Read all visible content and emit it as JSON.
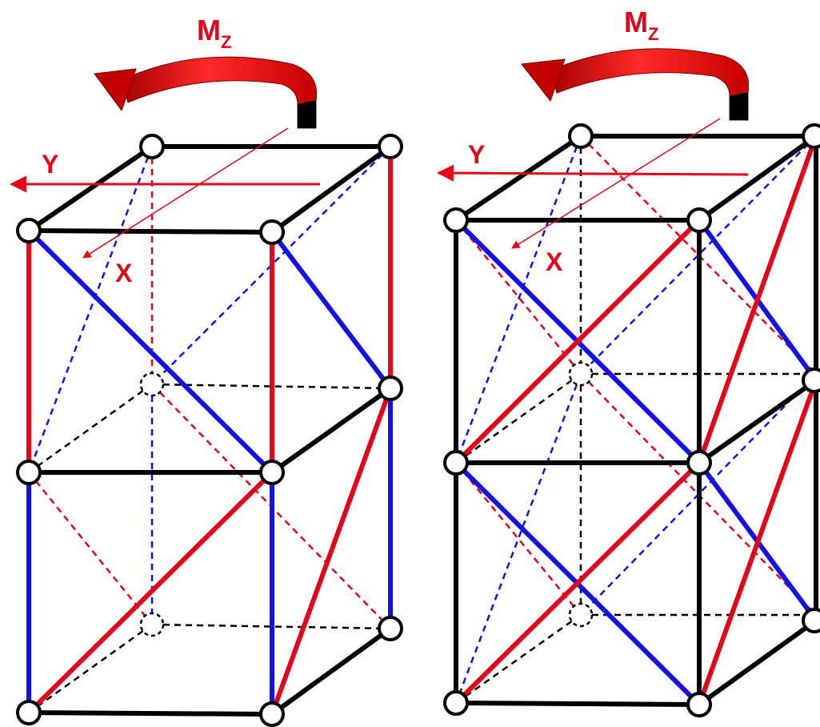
{
  "colors": {
    "frame": "#000000",
    "tension": "#e3061b",
    "compression": "#1410e6",
    "node_fill": "#ffffff"
  },
  "left_frame": {
    "moment_label": "M",
    "moment_subscript": "Z",
    "axis_y_label": "Y",
    "axis_x_label": "X"
  },
  "right_frame": {
    "moment_label": "M",
    "moment_subscript": "Z",
    "axis_y_label": "Y",
    "axis_x_label": "X"
  },
  "icons": [
    "curved-moment-arrow-icon",
    "axis-arrow-icon",
    "joint-node-icon"
  ]
}
